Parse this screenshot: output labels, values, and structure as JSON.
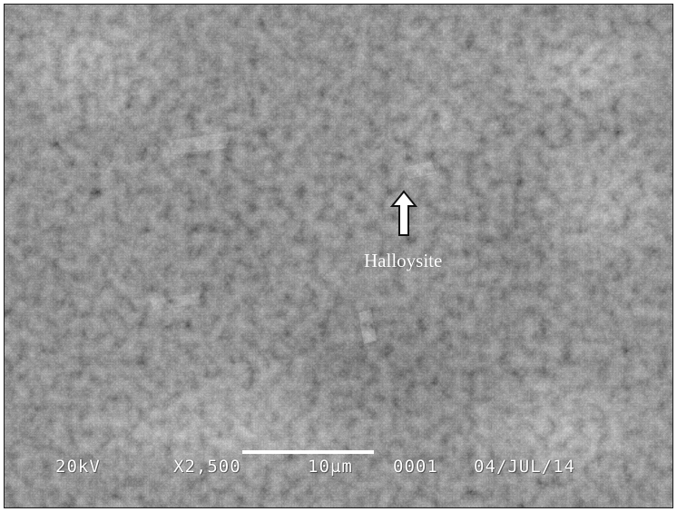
{
  "image": {
    "annotation": {
      "label": "Halloysite"
    },
    "sem_info": {
      "voltage": "20kV",
      "magnification": "X2,500",
      "scale_label": "10µm",
      "image_number": "0001",
      "date": "04/JUL/14"
    },
    "colors": {
      "background": "#6e6e6e",
      "text": "#ffffff",
      "border": "#1a1a1a"
    }
  }
}
